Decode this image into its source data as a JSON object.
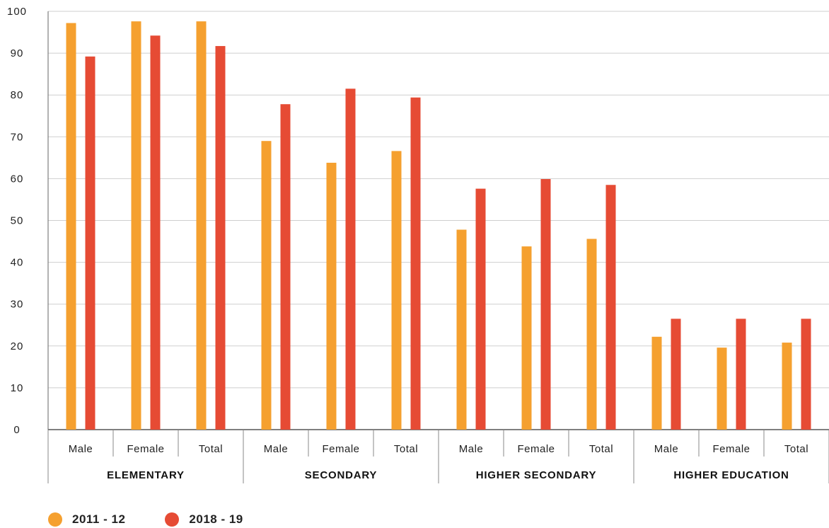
{
  "chart_data": {
    "type": "bar",
    "title": "",
    "xlabel": "",
    "ylabel": "",
    "ylim": [
      0,
      100
    ],
    "yticks": [
      0,
      10,
      20,
      30,
      40,
      50,
      60,
      70,
      80,
      90,
      100
    ],
    "grid": true,
    "legend_position": "bottom-left",
    "groups": [
      {
        "name": "ELEMENTARY",
        "categories": [
          "Male",
          "Female",
          "Total"
        ]
      },
      {
        "name": "SECONDARY",
        "categories": [
          "Male",
          "Female",
          "Total"
        ]
      },
      {
        "name": "HIGHER SECONDARY",
        "categories": [
          "Male",
          "Female",
          "Total"
        ]
      },
      {
        "name": "HIGHER EDUCATION",
        "categories": [
          "Male",
          "Female",
          "Total"
        ]
      }
    ],
    "categories": [
      "Male",
      "Female",
      "Total",
      "Male",
      "Female",
      "Total",
      "Male",
      "Female",
      "Total",
      "Male",
      "Female",
      "Total"
    ],
    "series": [
      {
        "name": "2011 - 12",
        "color": "#F5A02F",
        "values": [
          97.2,
          97.6,
          97.6,
          69.0,
          63.8,
          66.6,
          47.8,
          43.8,
          45.6,
          22.2,
          19.6,
          20.8
        ]
      },
      {
        "name": "2018 - 19",
        "color": "#E64B34",
        "values": [
          89.2,
          94.2,
          91.7,
          77.8,
          81.5,
          79.4,
          57.6,
          59.9,
          58.5,
          26.5,
          26.5,
          26.5
        ]
      }
    ]
  }
}
